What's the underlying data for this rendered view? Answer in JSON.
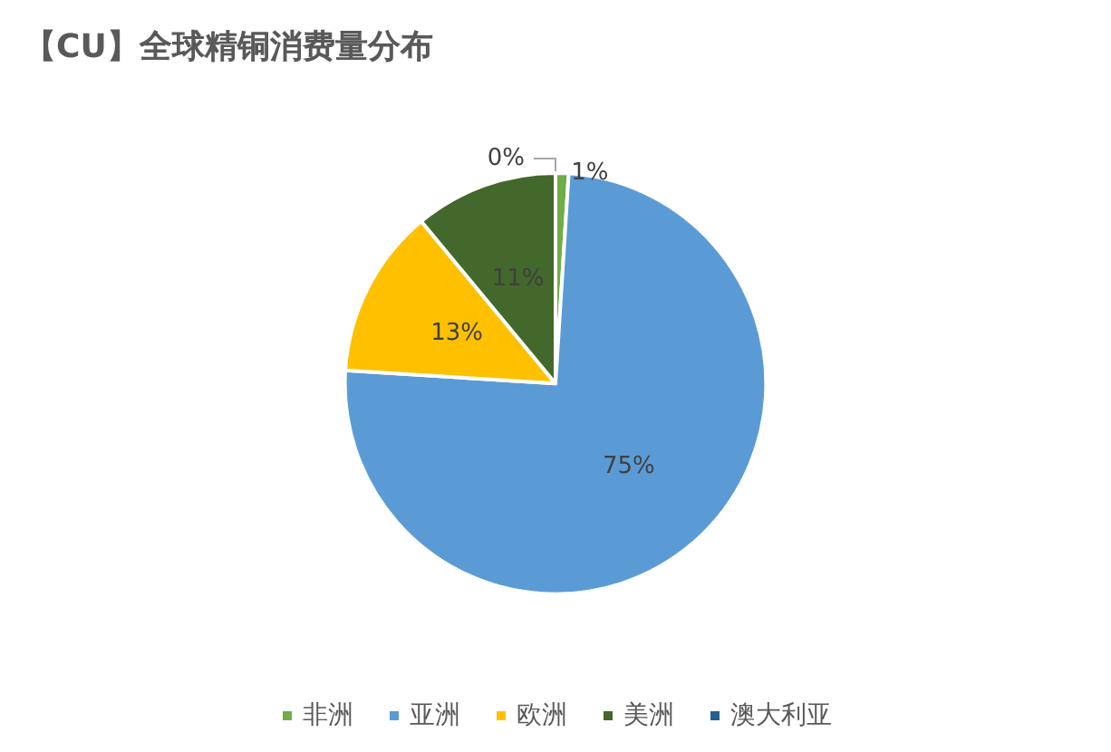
{
  "chart_data": {
    "type": "pie",
    "title": "【CU】全球精铜消费量分布",
    "categories": [
      "非洲",
      "亚洲",
      "欧洲",
      "美洲",
      "澳大利亚"
    ],
    "values": [
      1,
      75,
      13,
      11,
      0
    ],
    "colors": [
      "#70ad47",
      "#5b9bd5",
      "#ffc000",
      "#43682b",
      "#255e91"
    ],
    "value_labels": [
      "1%",
      "75%",
      "13%",
      "11%",
      "0%"
    ],
    "legend": "bottom"
  }
}
